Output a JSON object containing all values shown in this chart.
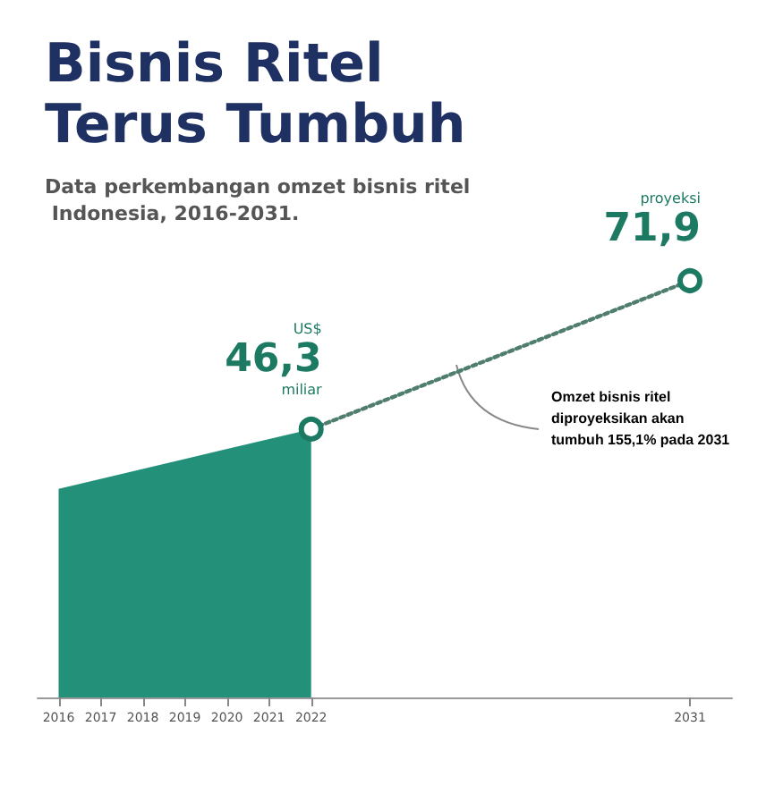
{
  "chart_data": {
    "type": "area",
    "title": "Bisnis Ritel Terus Tumbuh",
    "subtitle": "Data perkembangan omzet bisnis ritel Indonesia, 2016-2031.",
    "annotations": [
      "Omzet bisnis ritel diproyeksikan akan tumbuh 155,1% pada 2031"
    ],
    "xlim": [
      2015.5,
      2032
    ],
    "xticks": [
      2016,
      2017,
      2018,
      2019,
      2020,
      2021,
      2022,
      2031
    ],
    "series": [
      {
        "color": "#23907a",
        "x": [
          2016,
          2022
        ],
        "values": [
          36,
          46.3
        ]
      },
      {
        "type": "line",
        "color": "#4f7d6e",
        "x": [
          2022,
          2031
        ],
        "values": [
          46.3,
          71.9
        ],
        "marker": "circle",
        "line_style": "dotted",
        "value_labels": [
          "US$\n46,3\nmiliar",
          "proyeksi\n71,9"
        ]
      }
    ],
    "grid": false
  }
}
